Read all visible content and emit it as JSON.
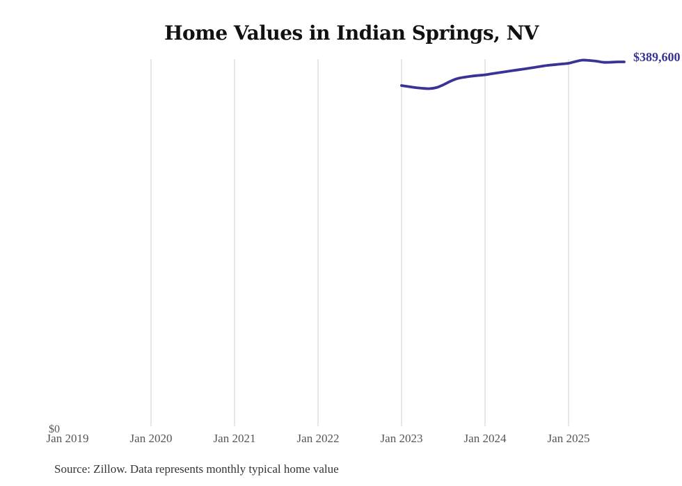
{
  "chart": {
    "title": "Home Values in Indian Springs, NV",
    "end_label": "$389,600",
    "y_zero_label": "$0",
    "source_note": "Source: Zillow. Data represents monthly typical home value",
    "accent_color": "#3a3295",
    "gridline_color": "#cccccc",
    "axis_label_color": "#555555"
  },
  "chart_data": {
    "type": "line",
    "title": "Home Values in Indian Springs, NV",
    "xlabel": "",
    "ylabel": "",
    "legend": "none",
    "grid": "vertical-only",
    "ylim": [
      0,
      392600
    ],
    "x_axis_start_month": "2019-01",
    "x_ticks": [
      {
        "label": "Jan 2019",
        "month": "2019-01",
        "gridline": false
      },
      {
        "label": "Jan 2020",
        "month": "2020-01",
        "gridline": true
      },
      {
        "label": "Jan 2021",
        "month": "2021-01",
        "gridline": true
      },
      {
        "label": "Jan 2022",
        "month": "2022-01",
        "gridline": true
      },
      {
        "label": "Jan 2023",
        "month": "2023-01",
        "gridline": true
      },
      {
        "label": "Jan 2024",
        "month": "2024-01",
        "gridline": true
      },
      {
        "label": "Jan 2025",
        "month": "2025-01",
        "gridline": true
      }
    ],
    "y_tick_labels": [
      "$0"
    ],
    "end_value_label": "$389,600",
    "source": "Source: Zillow. Data represents monthly typical home value",
    "series": [
      {
        "name": "Monthly typical home value",
        "color": "#3a3295",
        "x": [
          "2023-01",
          "2023-02",
          "2023-03",
          "2023-04",
          "2023-05",
          "2023-06",
          "2023-07",
          "2023-08",
          "2023-09",
          "2023-10",
          "2023-11",
          "2023-12",
          "2024-01",
          "2024-02",
          "2024-03",
          "2024-04",
          "2024-05",
          "2024-06",
          "2024-07",
          "2024-08",
          "2024-09",
          "2024-10",
          "2024-11",
          "2024-12",
          "2025-01",
          "2025-02",
          "2025-03",
          "2025-04",
          "2025-05",
          "2025-06",
          "2025-07",
          "2025-08",
          "2025-09"
        ],
        "values": [
          364300,
          363200,
          362100,
          361400,
          361000,
          362100,
          365100,
          368800,
          371700,
          373200,
          374300,
          375100,
          375800,
          377000,
          378100,
          379200,
          380300,
          381400,
          382500,
          383600,
          384800,
          385900,
          386600,
          387400,
          388100,
          390000,
          391500,
          391100,
          390400,
          389200,
          389200,
          389600,
          389600
        ]
      }
    ]
  }
}
